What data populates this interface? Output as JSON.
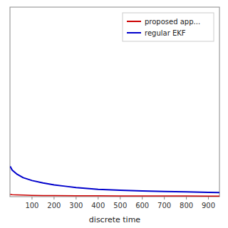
{
  "chart_data": {
    "type": "line",
    "x_label": "discrete time",
    "xlim": [
      0,
      950
    ],
    "ylim": [
      0,
      1.0
    ],
    "xticks": [
      100,
      200,
      300,
      400,
      500,
      600,
      700,
      800,
      900
    ],
    "tick_labels": "x",
    "legend": "upper right",
    "series": [
      {
        "name": "proposed app...",
        "color": "#cc0000",
        "x": [
          1,
          10,
          30,
          60,
          100,
          150,
          200,
          300,
          400,
          500,
          600,
          700,
          800,
          900,
          950
        ],
        "values": [
          0.012,
          0.01,
          0.009,
          0.008,
          0.007,
          0.006,
          0.006,
          0.005,
          0.005,
          0.004,
          0.004,
          0.004,
          0.004,
          0.003,
          0.003
        ]
      },
      {
        "name": "regular EKF",
        "color": "#0000cc",
        "x": [
          1,
          10,
          30,
          60,
          100,
          150,
          200,
          250,
          300,
          350,
          400,
          500,
          600,
          700,
          800,
          900,
          950
        ],
        "values": [
          0.16,
          0.14,
          0.12,
          0.1,
          0.085,
          0.072,
          0.062,
          0.055,
          0.048,
          0.043,
          0.039,
          0.034,
          0.03,
          0.027,
          0.025,
          0.023,
          0.022
        ]
      }
    ]
  }
}
